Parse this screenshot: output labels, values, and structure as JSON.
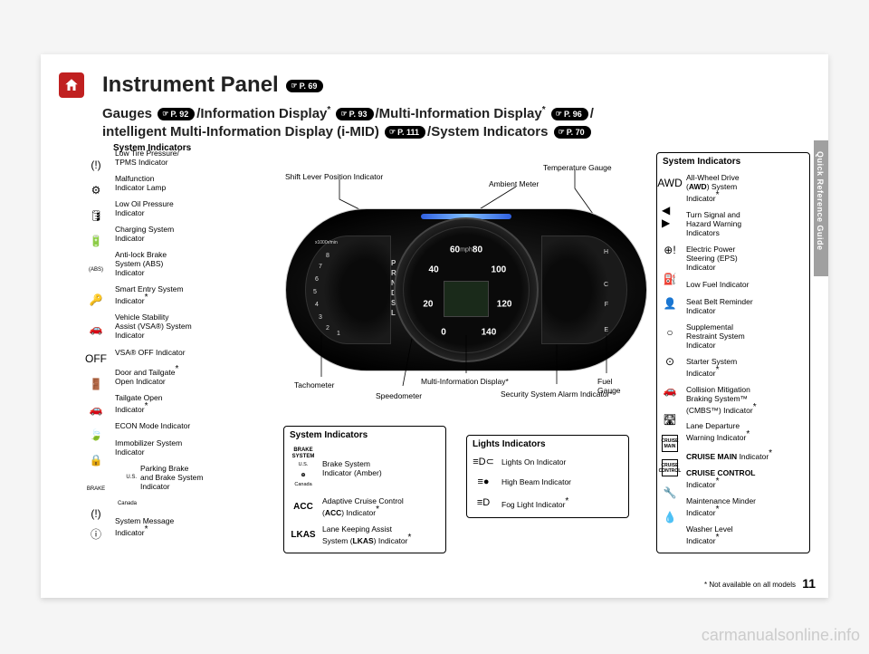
{
  "page_number": "11",
  "side_tab": "Quick Reference Guide",
  "title": "Instrument Panel",
  "title_ref": "P. 69",
  "subtitle_parts": [
    {
      "text": "Gauges ",
      "ref": "P. 92"
    },
    {
      "text": "/Information Display",
      "sup": "*",
      "text2": " ",
      "ref": "P. 93"
    },
    {
      "text": "/Multi-Information Display",
      "sup": "*",
      "text2": " ",
      "ref": "P. 96"
    },
    {
      "text": "/"
    },
    {
      "br": true
    },
    {
      "text": "intelligent Multi-Information Display (i-MID) ",
      "ref": "P. 111"
    },
    {
      "text": "/System Indicators ",
      "ref": "P. 70"
    }
  ],
  "footnote": "* Not available on all models",
  "watermark": "carmanualsonline.info",
  "left_panel": {
    "title": "System Indicators",
    "icons": [
      "tpms",
      "check-engine",
      "oil",
      "battery",
      "abs",
      "smart",
      "vsa",
      "vsa-off",
      "door",
      "tailgate",
      "econ",
      "immob",
      "brake",
      "brake-ca",
      "info"
    ],
    "icon_glyphs": [
      "(!)",
      "⚙",
      "🛢",
      "🔋",
      "(ABS)",
      "🔑",
      "🚗",
      "OFF",
      "🚪",
      "🚗",
      "🍃",
      "🔒",
      "BRAKE",
      "(!)",
      "ⓘ"
    ],
    "labels": [
      "Low Tire Pressure/\nTPMS Indicator",
      "Malfunction\nIndicator Lamp",
      "Low Oil Pressure\nIndicator",
      "Charging System\nIndicator",
      "Anti-lock Brake\nSystem (ABS)\nIndicator",
      "Smart Entry System\nIndicator*",
      "Vehicle Stability\nAssist (VSA®) System\nIndicator",
      "VSA® OFF Indicator",
      "Door and Tailgate*\nOpen Indicator",
      "Tailgate Open\nIndicator*",
      "ECON Mode Indicator",
      "Immobilizer System\nIndicator",
      "Parking Brake\nand Brake System\nIndicator",
      "",
      "System Message\nIndicator*"
    ],
    "sub_labels": {
      "12": "U.S.",
      "13": "Canada"
    }
  },
  "center_callouts_top": {
    "shift": "Shift Lever Position Indicator",
    "ambient": "Ambient Meter",
    "temp": "Temperature Gauge"
  },
  "center_callouts_bottom": {
    "tach": "Tachometer",
    "speedo": "Speedometer",
    "mid": "Multi-Information Display*",
    "fuel": "Fuel\nGauge",
    "security": "Security System Alarm Indicator*"
  },
  "speed_values": {
    "s0": "0",
    "s20": "20",
    "s40": "40",
    "s60": "60",
    "s80": "80",
    "s100": "100",
    "s120": "120",
    "s140": "140",
    "mph": "mph"
  },
  "shift_letters": "P\nR\nN\nD\nS\nL",
  "tach_labels": {
    "rpm": "x1000r/min",
    "n1": "1",
    "n2": "2",
    "n3": "3",
    "n4": "4",
    "n5": "5",
    "n6": "6",
    "n7": "7",
    "n8": "8"
  },
  "right_dial": {
    "c": "C",
    "h": "H",
    "e": "E",
    "f": "F"
  },
  "center_panel": {
    "title": "System Indicators",
    "rows": [
      {
        "sym": "BRAKE SYSTEM",
        "sub": "U.S.",
        "sub2": "Canada",
        "label": "Brake System\nIndicator (Amber)"
      },
      {
        "sym": "ACC",
        "label": "Adaptive Cruise Control\n(ACC) Indicator*"
      },
      {
        "sym": "LKAS",
        "label": "Lane Keeping Assist\nSystem (LKAS) Indicator*"
      }
    ]
  },
  "lights_panel": {
    "title": "Lights Indicators",
    "rows": [
      {
        "sym": "lights-on",
        "glyph": "≡D⊂",
        "label": "Lights On Indicator"
      },
      {
        "sym": "high-beam",
        "glyph": "≡●",
        "label": "High Beam Indicator"
      },
      {
        "sym": "fog",
        "glyph": "≡D",
        "label": "Fog Light Indicator*"
      }
    ]
  },
  "right_panel": {
    "title": "System Indicators",
    "icons": [
      "awd",
      "turn",
      "eps",
      "fuel",
      "seatbelt",
      "srs",
      "starter",
      "cmbs",
      "ldw",
      "cruise-main",
      "cruise-ctl",
      "wrench",
      "washer"
    ],
    "icon_glyphs": [
      "AWD",
      "◀ ▶",
      "⊕!",
      "⛽",
      "👤",
      "○",
      "⊙",
      "🚗",
      "🛣",
      "CRUISE MAIN",
      "CRUISE CONTROL",
      "🔧",
      "💧"
    ],
    "labels": [
      "All-Wheel Drive\n(AWD) System\nIndicator*",
      "Turn Signal and\nHazard Warning\nIndicators",
      "Electric Power\nSteering (EPS)\nIndicator",
      "Low Fuel Indicator",
      "Seat Belt Reminder\nIndicator",
      "Supplemental\nRestraint System\nIndicator",
      "Starter System\nIndicator*",
      "Collision Mitigation\nBraking System™\n(CMBS™) Indicator*",
      "Lane Departure\nWarning Indicator*",
      "CRUISE MAIN Indicator*",
      "CRUISE CONTROL\nIndicator*",
      "Maintenance Minder\nIndicator*",
      "Washer Level\nIndicator*"
    ]
  },
  "colors": {
    "home_bg": "#c02020",
    "page_bg": "#ffffff",
    "body_bg": "#f5f5f5",
    "cluster_dark": "#000000",
    "ambient_blue": "#3060e0"
  }
}
